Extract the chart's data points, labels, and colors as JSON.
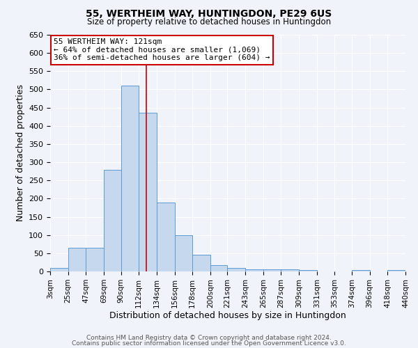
{
  "title": "55, WERTHEIM WAY, HUNTINGDON, PE29 6US",
  "subtitle": "Size of property relative to detached houses in Huntingdon",
  "xlabel": "Distribution of detached houses by size in Huntingdon",
  "ylabel": "Number of detached properties",
  "bar_color": "#c5d8ed",
  "bar_edge_color": "#5b9bd5",
  "background_color": "#f0f4fa",
  "grid_color": "#ffffff",
  "bin_labels": [
    "3sqm",
    "25sqm",
    "47sqm",
    "69sqm",
    "90sqm",
    "112sqm",
    "134sqm",
    "156sqm",
    "178sqm",
    "200sqm",
    "221sqm",
    "243sqm",
    "265sqm",
    "287sqm",
    "309sqm",
    "331sqm",
    "353sqm",
    "374sqm",
    "396sqm",
    "418sqm",
    "440sqm"
  ],
  "bin_edges": [
    3,
    25,
    47,
    69,
    90,
    112,
    134,
    156,
    178,
    200,
    221,
    243,
    265,
    287,
    309,
    331,
    353,
    374,
    396,
    418,
    440
  ],
  "bar_heights": [
    10,
    65,
    65,
    280,
    510,
    435,
    190,
    100,
    46,
    18,
    10,
    5,
    6,
    5,
    4,
    0,
    0,
    4,
    0,
    4
  ],
  "ylim": [
    0,
    650
  ],
  "yticks": [
    0,
    50,
    100,
    150,
    200,
    250,
    300,
    350,
    400,
    450,
    500,
    550,
    600,
    650
  ],
  "vline_x": 121,
  "vline_color": "#cc0000",
  "annotation_line1": "55 WERTHEIM WAY: 121sqm",
  "annotation_line2": "← 64% of detached houses are smaller (1,069)",
  "annotation_line3": "36% of semi-detached houses are larger (604) →",
  "annotation_box_color": "#ffffff",
  "annotation_box_edge": "#cc0000",
  "footer1": "Contains HM Land Registry data © Crown copyright and database right 2024.",
  "footer2": "Contains public sector information licensed under the Open Government Licence v3.0."
}
